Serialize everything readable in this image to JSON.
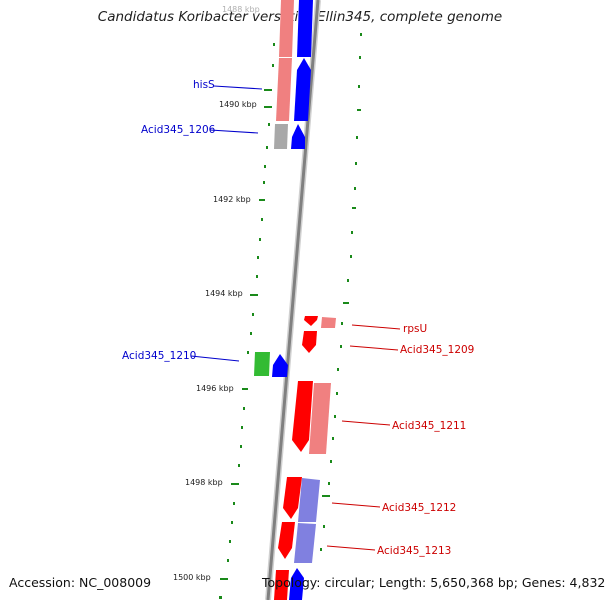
{
  "title": "Candidatus Koribacter versatilis Ellin345, complete genome",
  "accession": "Accession: NC_008009",
  "summary": "Topology: circular; Length: 5,650,368 bp; Genes: 4,832",
  "kbp_labels": [
    "1488 kbp",
    "1490 kbp",
    "1492 kbp",
    "1494 kbp",
    "1496 kbp",
    "1498 kbp",
    "1500 kbp"
  ],
  "gene_labels": {
    "hisS": "hisS",
    "acid1206": "Acid345_1206",
    "acid1210": "Acid345_1210",
    "rpsU": "rpsU",
    "acid1209": "Acid345_1209",
    "acid1211": "Acid345_1211",
    "acid1212": "Acid345_1212",
    "acid1213": "Acid345_1213"
  },
  "colors": {
    "forward_cds": "#0000ff",
    "reverse_cds": "#ff0000",
    "forward_shade": "#8080e0",
    "reverse_shade": "#f08080",
    "gc_skew": "#1a8a1a",
    "label_forward": "#0000cc",
    "label_reverse": "#cc0000"
  }
}
